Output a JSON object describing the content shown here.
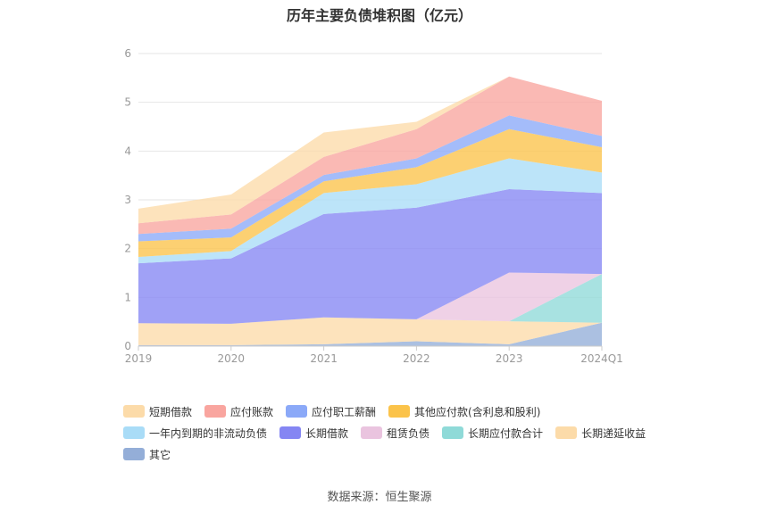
{
  "title": "历年主要负债堆积图（亿元）",
  "source": "数据来源：恒生聚源",
  "chart_data": {
    "type": "area",
    "stacked": true,
    "categories": [
      "2019",
      "2020",
      "2021",
      "2022",
      "2023",
      "2024Q1"
    ],
    "ylim": [
      0,
      6
    ],
    "yticks": [
      "0",
      "1",
      "2",
      "3",
      "4",
      "5",
      "6"
    ],
    "grid": true,
    "legend_position": "bottom",
    "series": [
      {
        "name": "其它",
        "color": "#94aed8",
        "values": [
          0.02,
          0.02,
          0.04,
          0.1,
          0.04,
          0.48
        ]
      },
      {
        "name": "长期递延收益",
        "color": "#fcdba9",
        "values": [
          0.45,
          0.44,
          0.55,
          0.45,
          0.47,
          0.0
        ]
      },
      {
        "name": "长期应付款合计",
        "color": "#8fdad8",
        "values": [
          0,
          0,
          0,
          0,
          0,
          1.0
        ]
      },
      {
        "name": "租赁负债",
        "color": "#eac4df",
        "values": [
          0,
          0,
          0,
          0,
          1.0,
          0
        ]
      },
      {
        "name": "长期借款",
        "color": "#8586f3",
        "values": [
          1.23,
          1.34,
          2.12,
          2.29,
          1.71,
          1.66
        ]
      },
      {
        "name": "一年内到期的非流动负债",
        "color": "#a9dcf7",
        "values": [
          0.13,
          0.15,
          0.43,
          0.48,
          0.63,
          0.42
        ]
      },
      {
        "name": "其他应付款(含利息和股利)",
        "color": "#fbc34a",
        "values": [
          0.32,
          0.28,
          0.24,
          0.35,
          0.6,
          0.52
        ]
      },
      {
        "name": "应付职工薪酬",
        "color": "#8ba9f8",
        "values": [
          0.15,
          0.18,
          0.13,
          0.18,
          0.28,
          0.23
        ]
      },
      {
        "name": "应付账款",
        "color": "#f9a59f",
        "values": [
          0.22,
          0.29,
          0.37,
          0.6,
          0.8,
          0.72
        ]
      },
      {
        "name": "短期借款",
        "color": "#fcdba9",
        "values": [
          0.3,
          0.41,
          0.5,
          0.15,
          0.0,
          0.0
        ]
      }
    ]
  },
  "legend": [
    {
      "label": "短期借款",
      "color": "#fcdba9"
    },
    {
      "label": "应付账款",
      "color": "#f9a59f"
    },
    {
      "label": "应付职工薪酬",
      "color": "#8ba9f8"
    },
    {
      "label": "其他应付款(含利息和股利)",
      "color": "#fbc34a"
    },
    {
      "label": "一年内到期的非流动负债",
      "color": "#a9dcf7"
    },
    {
      "label": "长期借款",
      "color": "#8586f3"
    },
    {
      "label": "租赁负债",
      "color": "#eac4df"
    },
    {
      "label": "长期应付款合计",
      "color": "#8fdad8"
    },
    {
      "label": "长期递延收益",
      "color": "#fcdba9"
    },
    {
      "label": "其它",
      "color": "#94aed8"
    }
  ]
}
